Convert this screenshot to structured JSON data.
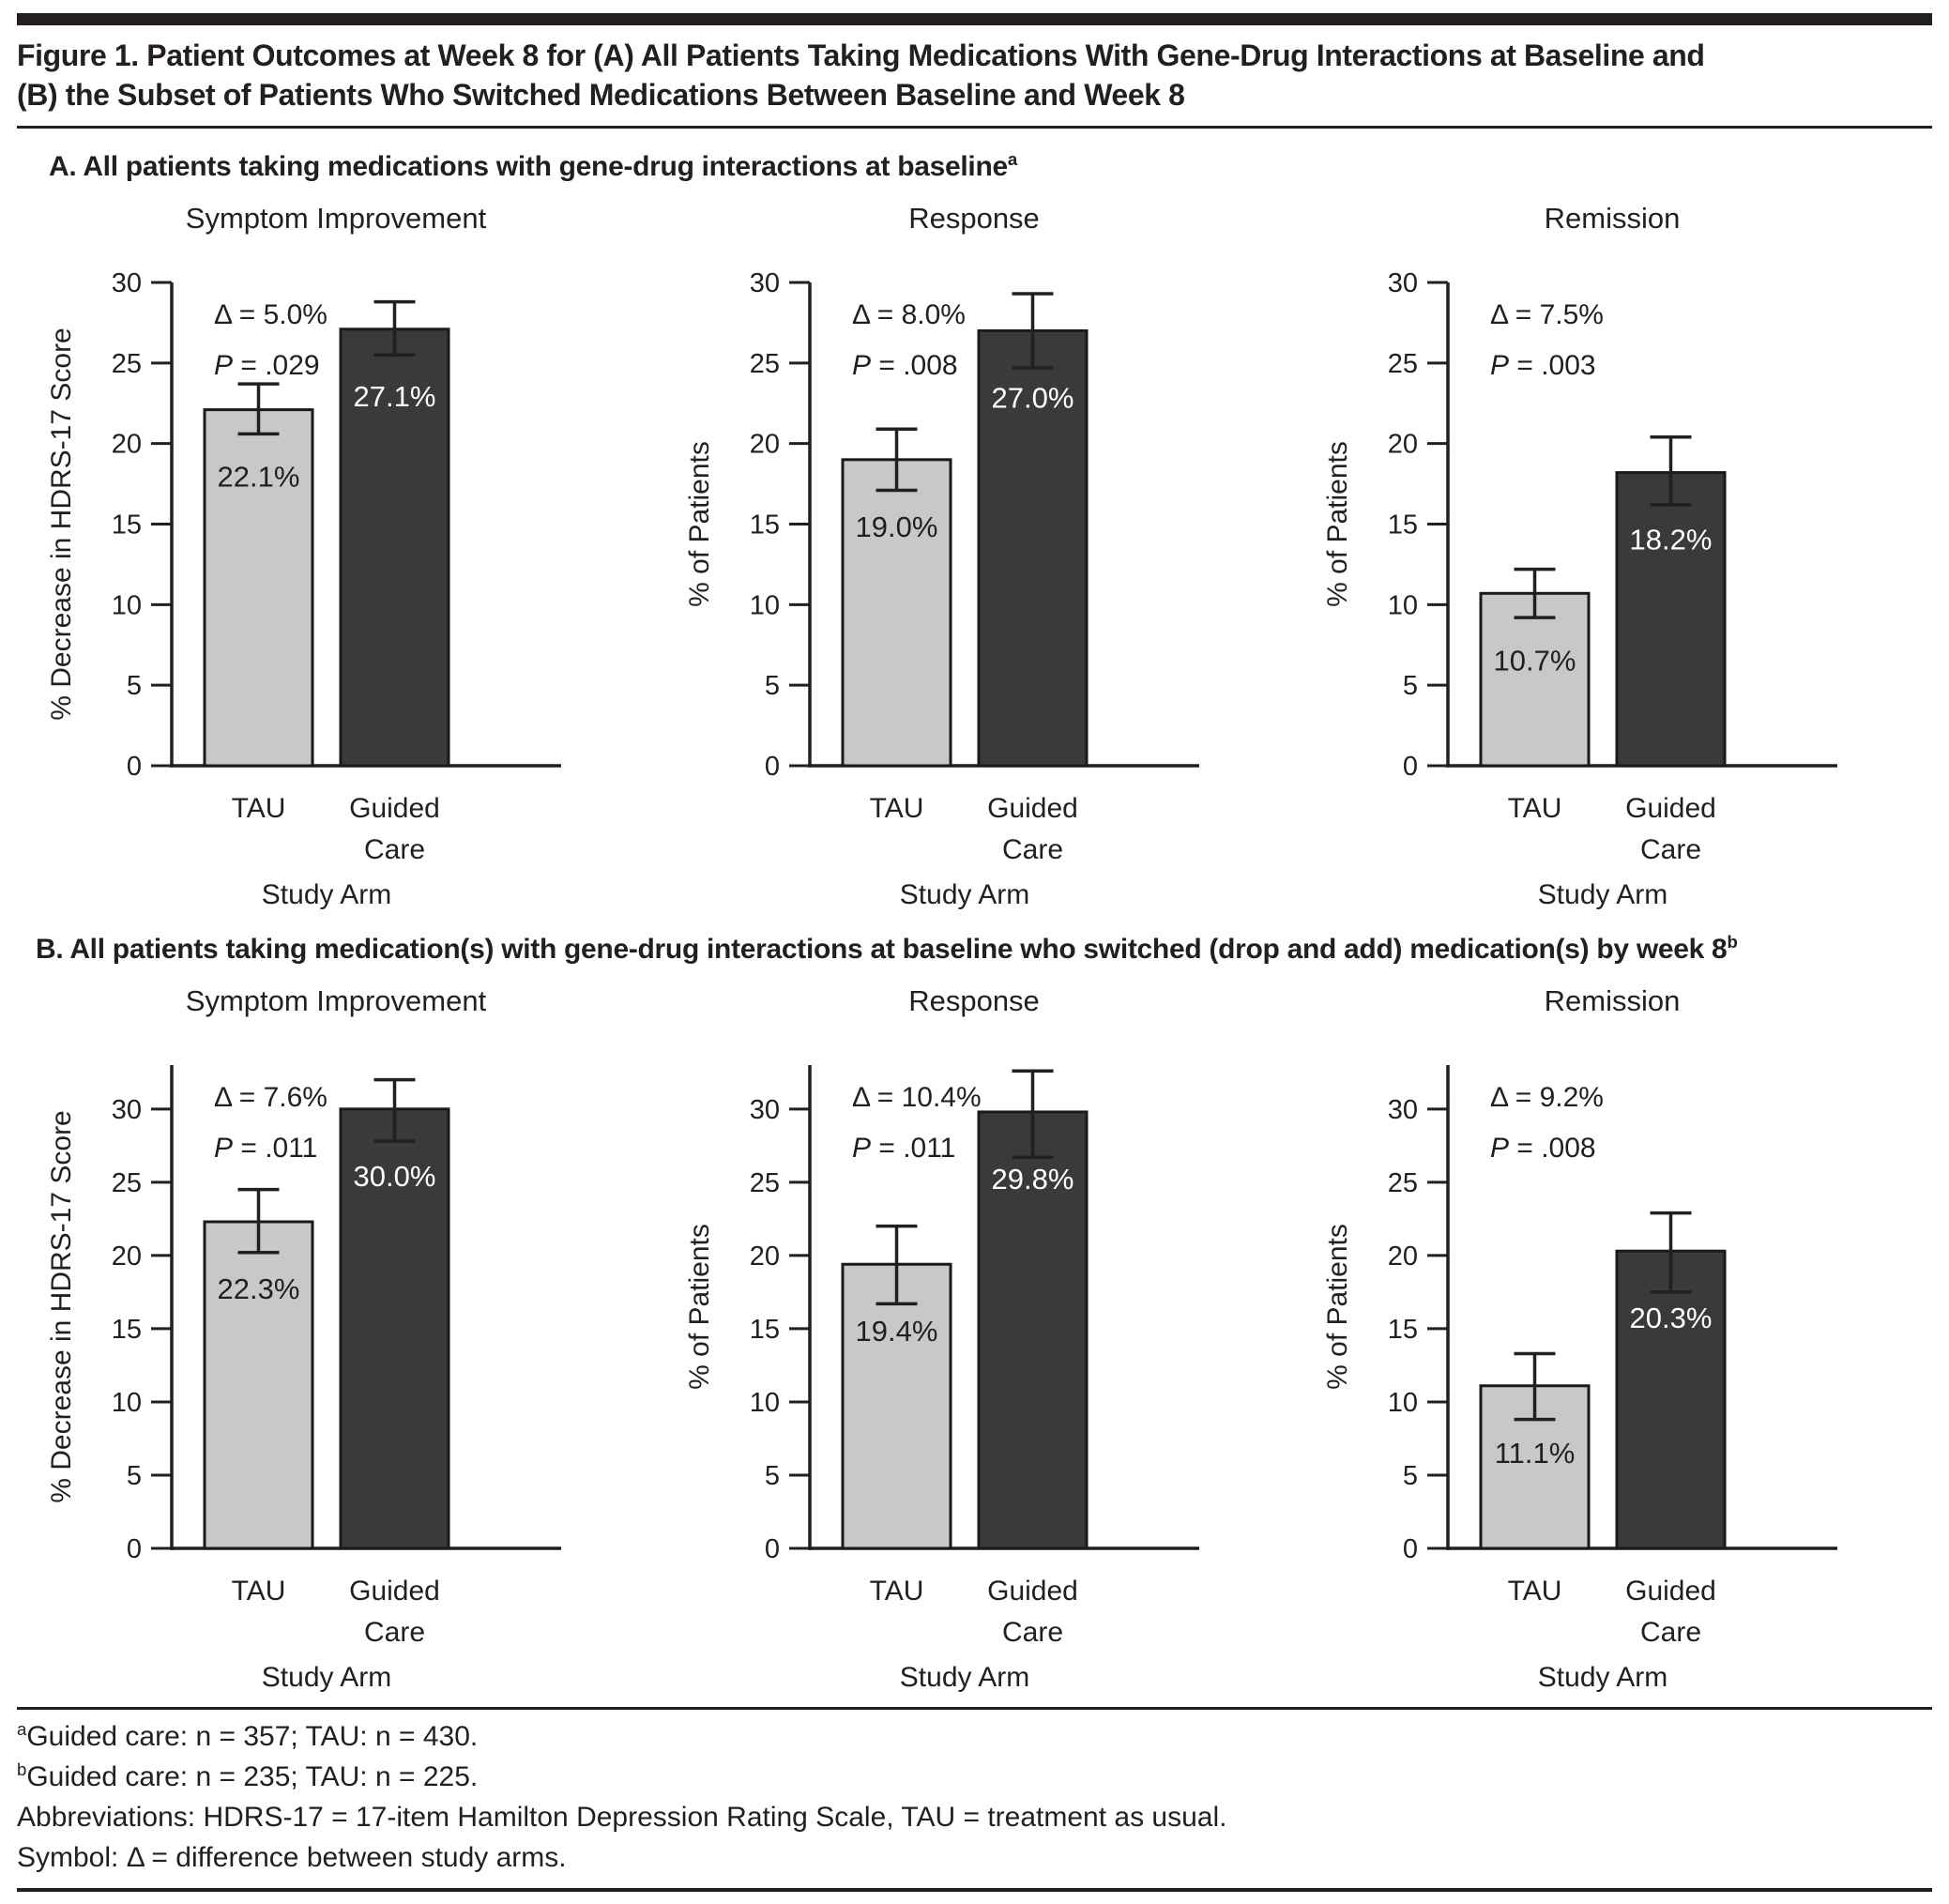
{
  "figure": {
    "title_line1": "Figure 1. Patient Outcomes at Week 8 for (A) All Patients Taking Medications With Gene-Drug Interactions at Baseline and",
    "title_line2": "(B) the Subset of Patients Who Switched Medications Between Baseline and Week 8"
  },
  "sections": [
    {
      "label": "A. All patients taking medications with gene-drug interactions at baseline",
      "sup": "a"
    },
    {
      "label": "B. All patients taking medication(s) with gene-drug interactions at baseline who switched (drop and add) medication(s) by week 8",
      "sup": "b"
    }
  ],
  "colors": {
    "tau_bar": "#c8c8c8",
    "guided_care_bar": "#3a3a3a",
    "bar_outline": "#1a1a1a",
    "axis": "#231f20",
    "text": "#231f20",
    "value_label_on_light": "#231f20",
    "value_label_on_dark": "#ffffff",
    "rule": "#231f20"
  },
  "chart_data": [
    {
      "type": "bar",
      "panel": "A",
      "title": "Symptom Improvement",
      "xlabel": "Study Arm",
      "ylabel": "% Decrease in HDRS-17 Score",
      "categories": [
        "TAU",
        "Guided Care"
      ],
      "values": [
        22.1,
        27.1
      ],
      "value_labels": [
        "22.1%",
        "27.1%"
      ],
      "error_bars": [
        [
          20.6,
          23.7
        ],
        [
          25.5,
          28.8
        ]
      ],
      "delta_label": "Δ = 5.0%",
      "p_label": "P = .029",
      "ylim": [
        0,
        30
      ],
      "yticks": [
        0,
        5,
        10,
        15,
        20,
        25,
        30
      ],
      "axis_top": 30,
      "grid": false,
      "legend": "none"
    },
    {
      "type": "bar",
      "panel": "A",
      "title": "Response",
      "xlabel": "Study Arm",
      "ylabel": "% of Patients",
      "categories": [
        "TAU",
        "Guided Care"
      ],
      "values": [
        19.0,
        27.0
      ],
      "value_labels": [
        "19.0%",
        "27.0%"
      ],
      "error_bars": [
        [
          17.1,
          20.9
        ],
        [
          24.7,
          29.3
        ]
      ],
      "delta_label": "Δ = 8.0%",
      "p_label": "P = .008",
      "ylim": [
        0,
        30
      ],
      "yticks": [
        0,
        5,
        10,
        15,
        20,
        25,
        30
      ],
      "axis_top": 30,
      "grid": false,
      "legend": "none"
    },
    {
      "type": "bar",
      "panel": "A",
      "title": "Remission",
      "xlabel": "Study Arm",
      "ylabel": "% of Patients",
      "categories": [
        "TAU",
        "Guided Care"
      ],
      "values": [
        10.7,
        18.2
      ],
      "value_labels": [
        "10.7%",
        "18.2%"
      ],
      "error_bars": [
        [
          9.2,
          12.2
        ],
        [
          16.2,
          20.4
        ]
      ],
      "delta_label": "Δ = 7.5%",
      "p_label": "P = .003",
      "ylim": [
        0,
        30
      ],
      "yticks": [
        0,
        5,
        10,
        15,
        20,
        25,
        30
      ],
      "axis_top": 30,
      "grid": false,
      "legend": "none"
    },
    {
      "type": "bar",
      "panel": "B",
      "title": "Symptom Improvement",
      "xlabel": "Study Arm",
      "ylabel": "% Decrease in HDRS-17 Score",
      "categories": [
        "TAU",
        "Guided Care"
      ],
      "values": [
        22.3,
        30.0
      ],
      "value_labels": [
        "22.3%",
        "30.0%"
      ],
      "error_bars": [
        [
          20.2,
          24.5
        ],
        [
          27.8,
          32.0
        ]
      ],
      "delta_label": "Δ = 7.6%",
      "p_label": "P = .011",
      "ylim": [
        0,
        33
      ],
      "yticks": [
        0,
        5,
        10,
        15,
        20,
        25,
        30
      ],
      "axis_top": 33,
      "grid": false,
      "legend": "none"
    },
    {
      "type": "bar",
      "panel": "B",
      "title": "Response",
      "xlabel": "Study Arm",
      "ylabel": "% of Patients",
      "categories": [
        "TAU",
        "Guided Care"
      ],
      "values": [
        19.4,
        29.8
      ],
      "value_labels": [
        "19.4%",
        "29.8%"
      ],
      "error_bars": [
        [
          16.7,
          22.0
        ],
        [
          26.7,
          32.6
        ]
      ],
      "delta_label": "Δ = 10.4%",
      "p_label": "P = .011",
      "ylim": [
        0,
        33
      ],
      "yticks": [
        0,
        5,
        10,
        15,
        20,
        25,
        30
      ],
      "axis_top": 33,
      "grid": false,
      "legend": "none"
    },
    {
      "type": "bar",
      "panel": "B",
      "title": "Remission",
      "xlabel": "Study Arm",
      "ylabel": "% of Patients",
      "categories": [
        "TAU",
        "Guided Care"
      ],
      "values": [
        11.1,
        20.3
      ],
      "value_labels": [
        "11.1%",
        "20.3%"
      ],
      "error_bars": [
        [
          8.8,
          13.3
        ],
        [
          17.5,
          22.9
        ]
      ],
      "delta_label": "Δ = 9.2%",
      "p_label": "P = .008",
      "ylim": [
        0,
        33
      ],
      "yticks": [
        0,
        5,
        10,
        15,
        20,
        25,
        30
      ],
      "axis_top": 33,
      "grid": false,
      "legend": "none"
    }
  ],
  "footnotes": {
    "line1": {
      "sup": "a",
      "text": "Guided care: n = 357; TAU: n = 430."
    },
    "line2": {
      "sup": "b",
      "text": "Guided care: n = 235; TAU: n = 225."
    },
    "line3": "Abbreviations: HDRS-17 = 17-item Hamilton Depression Rating Scale, TAU = treatment as usual.",
    "line4": "Symbol: Δ = difference between study arms."
  }
}
